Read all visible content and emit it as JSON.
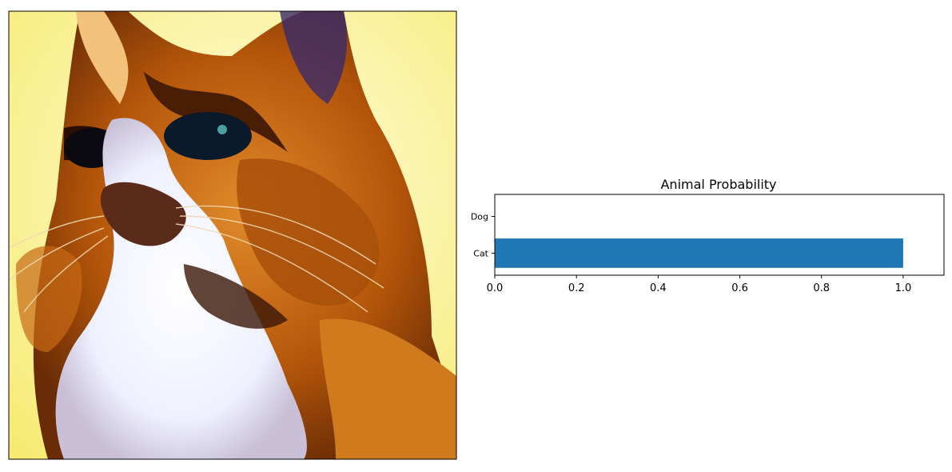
{
  "figure": {
    "image_panel": {
      "subject": "cat",
      "colors": {
        "background": "#fdf4a0",
        "fur_orange": "#c8660c",
        "fur_dark": "#3a1a06",
        "fur_white": "#f4f4ff",
        "eye": "#0a1a2a"
      }
    },
    "bar_color": "#1f77b4",
    "axes_color": "#000000"
  },
  "chart_data": {
    "type": "bar",
    "orientation": "horizontal",
    "title": "Animal Probability",
    "categories": [
      "Cat",
      "Dog"
    ],
    "values": [
      1.0,
      0.0
    ],
    "xlim": [
      0,
      1.1
    ],
    "xticks": [
      0.0,
      0.2,
      0.4,
      0.6,
      0.8,
      1.0
    ],
    "xtick_labels": [
      "0.0",
      "0.2",
      "0.4",
      "0.6",
      "0.8",
      "1.0"
    ],
    "xlabel": "",
    "ylabel": "",
    "grid": false
  }
}
